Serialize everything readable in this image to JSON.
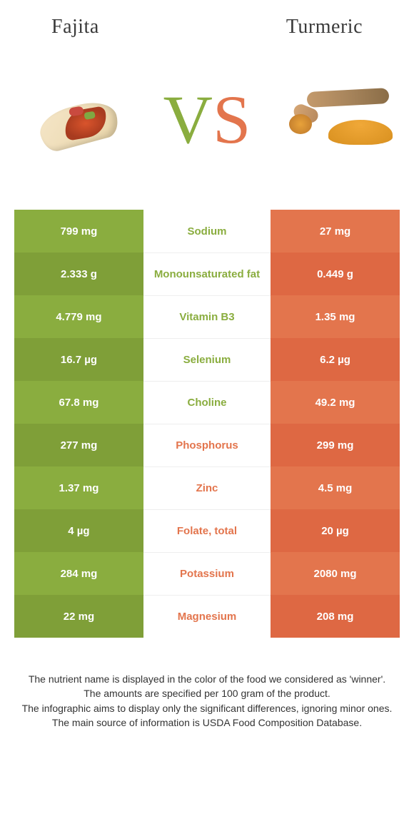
{
  "colors": {
    "left_primary": "#8aad3f",
    "left_alt": "#7f9f38",
    "right_primary": "#e3754d",
    "right_alt": "#de6843",
    "label_left_winner": "#8aad3f",
    "label_right_winner": "#e3754d"
  },
  "header": {
    "left_title": "Fajita",
    "right_title": "Turmeric"
  },
  "vs": {
    "v": "V",
    "s": "S"
  },
  "rows": [
    {
      "left": "799 mg",
      "label": "Sodium",
      "right": "27 mg",
      "winner": "left"
    },
    {
      "left": "2.333 g",
      "label": "Monounsaturated fat",
      "right": "0.449 g",
      "winner": "left"
    },
    {
      "left": "4.779 mg",
      "label": "Vitamin B3",
      "right": "1.35 mg",
      "winner": "left"
    },
    {
      "left": "16.7 µg",
      "label": "Selenium",
      "right": "6.2 µg",
      "winner": "left"
    },
    {
      "left": "67.8 mg",
      "label": "Choline",
      "right": "49.2 mg",
      "winner": "left"
    },
    {
      "left": "277 mg",
      "label": "Phosphorus",
      "right": "299 mg",
      "winner": "right"
    },
    {
      "left": "1.37 mg",
      "label": "Zinc",
      "right": "4.5 mg",
      "winner": "right"
    },
    {
      "left": "4 µg",
      "label": "Folate, total",
      "right": "20 µg",
      "winner": "right"
    },
    {
      "left": "284 mg",
      "label": "Potassium",
      "right": "2080 mg",
      "winner": "right"
    },
    {
      "left": "22 mg",
      "label": "Magnesium",
      "right": "208 mg",
      "winner": "right"
    }
  ],
  "footer": {
    "line1": "The nutrient name is displayed in the color of the food we considered as 'winner'.",
    "line2": "The amounts are specified per 100 gram of the product.",
    "line3": "The infographic aims to display only the significant differences, ignoring minor ones.",
    "line4": "The main source of information is USDA Food Composition Database."
  }
}
